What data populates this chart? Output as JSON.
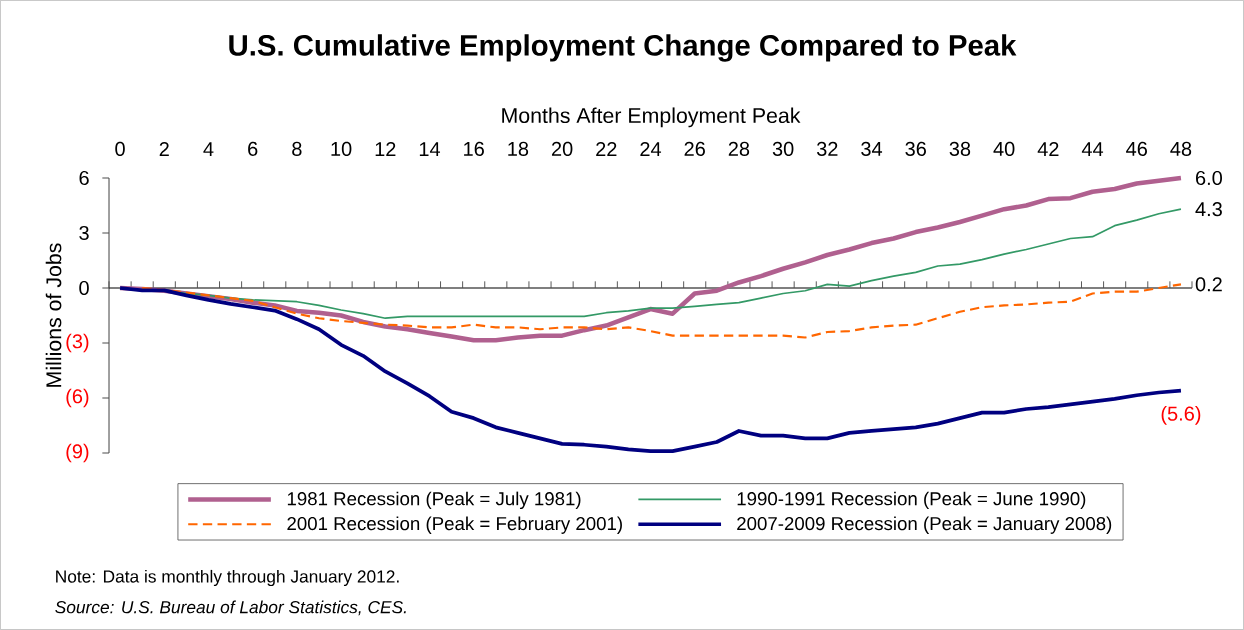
{
  "chart_data": {
    "type": "line",
    "title": "U.S. Cumulative Employment Change Compared to Peak",
    "xlabel": "Months After Employment Peak",
    "ylabel": "Millions of Jobs",
    "x": [
      0,
      1,
      2,
      3,
      4,
      5,
      6,
      7,
      8,
      9,
      10,
      11,
      12,
      13,
      14,
      15,
      16,
      17,
      18,
      19,
      20,
      21,
      22,
      23,
      24,
      25,
      26,
      27,
      28,
      29,
      30,
      31,
      32,
      33,
      34,
      35,
      36,
      37,
      38,
      39,
      40,
      41,
      42,
      43,
      44,
      45,
      46,
      47,
      48
    ],
    "xlim": [
      -0.5,
      48.5
    ],
    "xticks": [
      0,
      2,
      4,
      6,
      8,
      10,
      12,
      14,
      16,
      18,
      20,
      22,
      24,
      26,
      28,
      30,
      32,
      34,
      36,
      38,
      40,
      42,
      44,
      46,
      48
    ],
    "ylim": [
      -9,
      6
    ],
    "yticks": [
      6,
      3,
      0,
      {
        "value": -3,
        "label": "(3)"
      },
      {
        "value": -6,
        "label": "(6)"
      },
      {
        "value": -9,
        "label": "(9)"
      }
    ],
    "series": [
      {
        "name": "1981 Recession (Peak = July 1981)",
        "color": "#b0608f",
        "line_style": "solid",
        "values": [
          0,
          -0.05,
          -0.15,
          -0.3,
          -0.45,
          -0.6,
          -0.8,
          -0.95,
          -1.25,
          -1.35,
          -1.5,
          -1.85,
          -2.1,
          -2.25,
          -2.45,
          -2.65,
          -2.85,
          -2.85,
          -2.7,
          -2.6,
          -2.6,
          -2.3,
          -2.05,
          -1.6,
          -1.15,
          -1.4,
          -0.3,
          -0.15,
          0.3,
          0.65,
          1.05,
          1.4,
          1.8,
          2.1,
          2.45,
          2.7,
          3.05,
          3.3,
          3.6,
          3.95,
          4.3,
          4.5,
          4.85,
          4.9,
          5.25,
          5.4,
          5.7,
          5.85,
          6.0
        ],
        "value_labels": [
          null,
          null,
          null,
          null,
          null,
          null,
          null,
          null,
          null,
          null,
          null,
          null,
          null,
          null,
          null,
          null,
          null,
          null,
          null,
          null,
          null,
          null,
          null,
          null,
          null,
          null,
          null,
          null,
          null,
          null,
          null,
          null,
          null,
          null,
          null,
          null,
          null,
          null,
          null,
          null,
          null,
          null,
          null,
          null,
          null,
          null,
          null,
          null,
          "6.0"
        ]
      },
      {
        "name": "1990-1991 Recession (Peak = June 1990)",
        "color": "#339966",
        "line_style": "solid",
        "values": [
          null,
          null,
          -0.1,
          -0.3,
          -0.4,
          -0.55,
          -0.65,
          -0.7,
          -0.75,
          -0.95,
          -1.2,
          -1.4,
          -1.65,
          -1.55,
          -1.55,
          -1.55,
          -1.55,
          -1.55,
          -1.55,
          -1.55,
          -1.55,
          -1.55,
          -1.35,
          -1.25,
          -1.1,
          -1.1,
          -1.0,
          -0.9,
          -0.8,
          -0.55,
          -0.3,
          -0.15,
          0.2,
          0.1,
          0.4,
          0.65,
          0.85,
          1.2,
          1.3,
          1.55,
          1.85,
          2.1,
          2.4,
          2.7,
          2.8,
          3.4,
          3.7,
          4.05,
          4.3
        ],
        "value_labels": [
          null,
          null,
          null,
          null,
          null,
          null,
          null,
          null,
          null,
          null,
          null,
          null,
          null,
          null,
          null,
          null,
          null,
          null,
          null,
          null,
          null,
          null,
          null,
          null,
          null,
          null,
          null,
          null,
          null,
          null,
          null,
          null,
          null,
          null,
          null,
          null,
          null,
          null,
          null,
          null,
          null,
          null,
          null,
          null,
          null,
          null,
          null,
          null,
          "4.3"
        ]
      },
      {
        "name": "2001 Recession (Peak = February 2001)",
        "color": "#ff6600",
        "line_style": "dashed",
        "values": [
          null,
          0,
          -0.1,
          -0.25,
          -0.4,
          -0.55,
          -0.7,
          -1.05,
          -1.4,
          -1.65,
          -1.8,
          -1.9,
          -2.0,
          -2.05,
          -2.15,
          -2.15,
          -2.0,
          -2.15,
          -2.15,
          -2.25,
          -2.15,
          -2.15,
          -2.25,
          -2.15,
          -2.35,
          -2.6,
          -2.6,
          -2.6,
          -2.6,
          -2.6,
          -2.6,
          -2.7,
          -2.4,
          -2.35,
          -2.15,
          -2.05,
          -2.0,
          -1.65,
          -1.3,
          -1.05,
          -0.95,
          -0.9,
          -0.8,
          -0.75,
          -0.3,
          -0.2,
          -0.2,
          0,
          0.2
        ],
        "value_labels": [
          null,
          null,
          null,
          null,
          null,
          null,
          null,
          null,
          null,
          null,
          null,
          null,
          null,
          null,
          null,
          null,
          null,
          null,
          null,
          null,
          null,
          null,
          null,
          null,
          null,
          null,
          null,
          null,
          null,
          null,
          null,
          null,
          null,
          null,
          null,
          null,
          null,
          null,
          null,
          null,
          null,
          null,
          null,
          null,
          null,
          null,
          null,
          null,
          "0.2"
        ]
      },
      {
        "name": "2007-2009 Recession (Peak = January 2008)",
        "color": "#000080",
        "line_style": "solid",
        "values": [
          0,
          -0.13,
          -0.13,
          -0.4,
          -0.65,
          -0.87,
          -1.05,
          -1.23,
          -1.7,
          -2.25,
          -3.1,
          -3.7,
          -4.55,
          -5.2,
          -5.9,
          -6.75,
          -7.1,
          -7.6,
          -7.9,
          -8.2,
          -8.5,
          -8.55,
          -8.65,
          -8.8,
          -8.9,
          -8.9,
          -8.65,
          -8.4,
          -7.8,
          -8.05,
          -8.05,
          -8.2,
          -8.2,
          -7.9,
          -7.8,
          -7.7,
          -7.6,
          -7.4,
          -7.1,
          -6.8,
          -6.8,
          -6.6,
          -6.5,
          -6.35,
          -6.2,
          -6.05,
          -5.85,
          -5.7,
          -5.6
        ],
        "value_labels": [
          null,
          null,
          null,
          null,
          null,
          null,
          null,
          null,
          null,
          null,
          null,
          null,
          null,
          null,
          null,
          null,
          null,
          null,
          null,
          null,
          null,
          null,
          null,
          null,
          null,
          null,
          null,
          null,
          null,
          null,
          null,
          null,
          null,
          null,
          null,
          null,
          null,
          null,
          null,
          null,
          null,
          null,
          null,
          null,
          null,
          null,
          null,
          null,
          "(5.6)"
        ]
      }
    ],
    "legend": "bottom",
    "annotations": [
      "Note: Data is monthly through January 2012.",
      "Source: U.S. Bureau of Labor Statistics, CES."
    ]
  }
}
